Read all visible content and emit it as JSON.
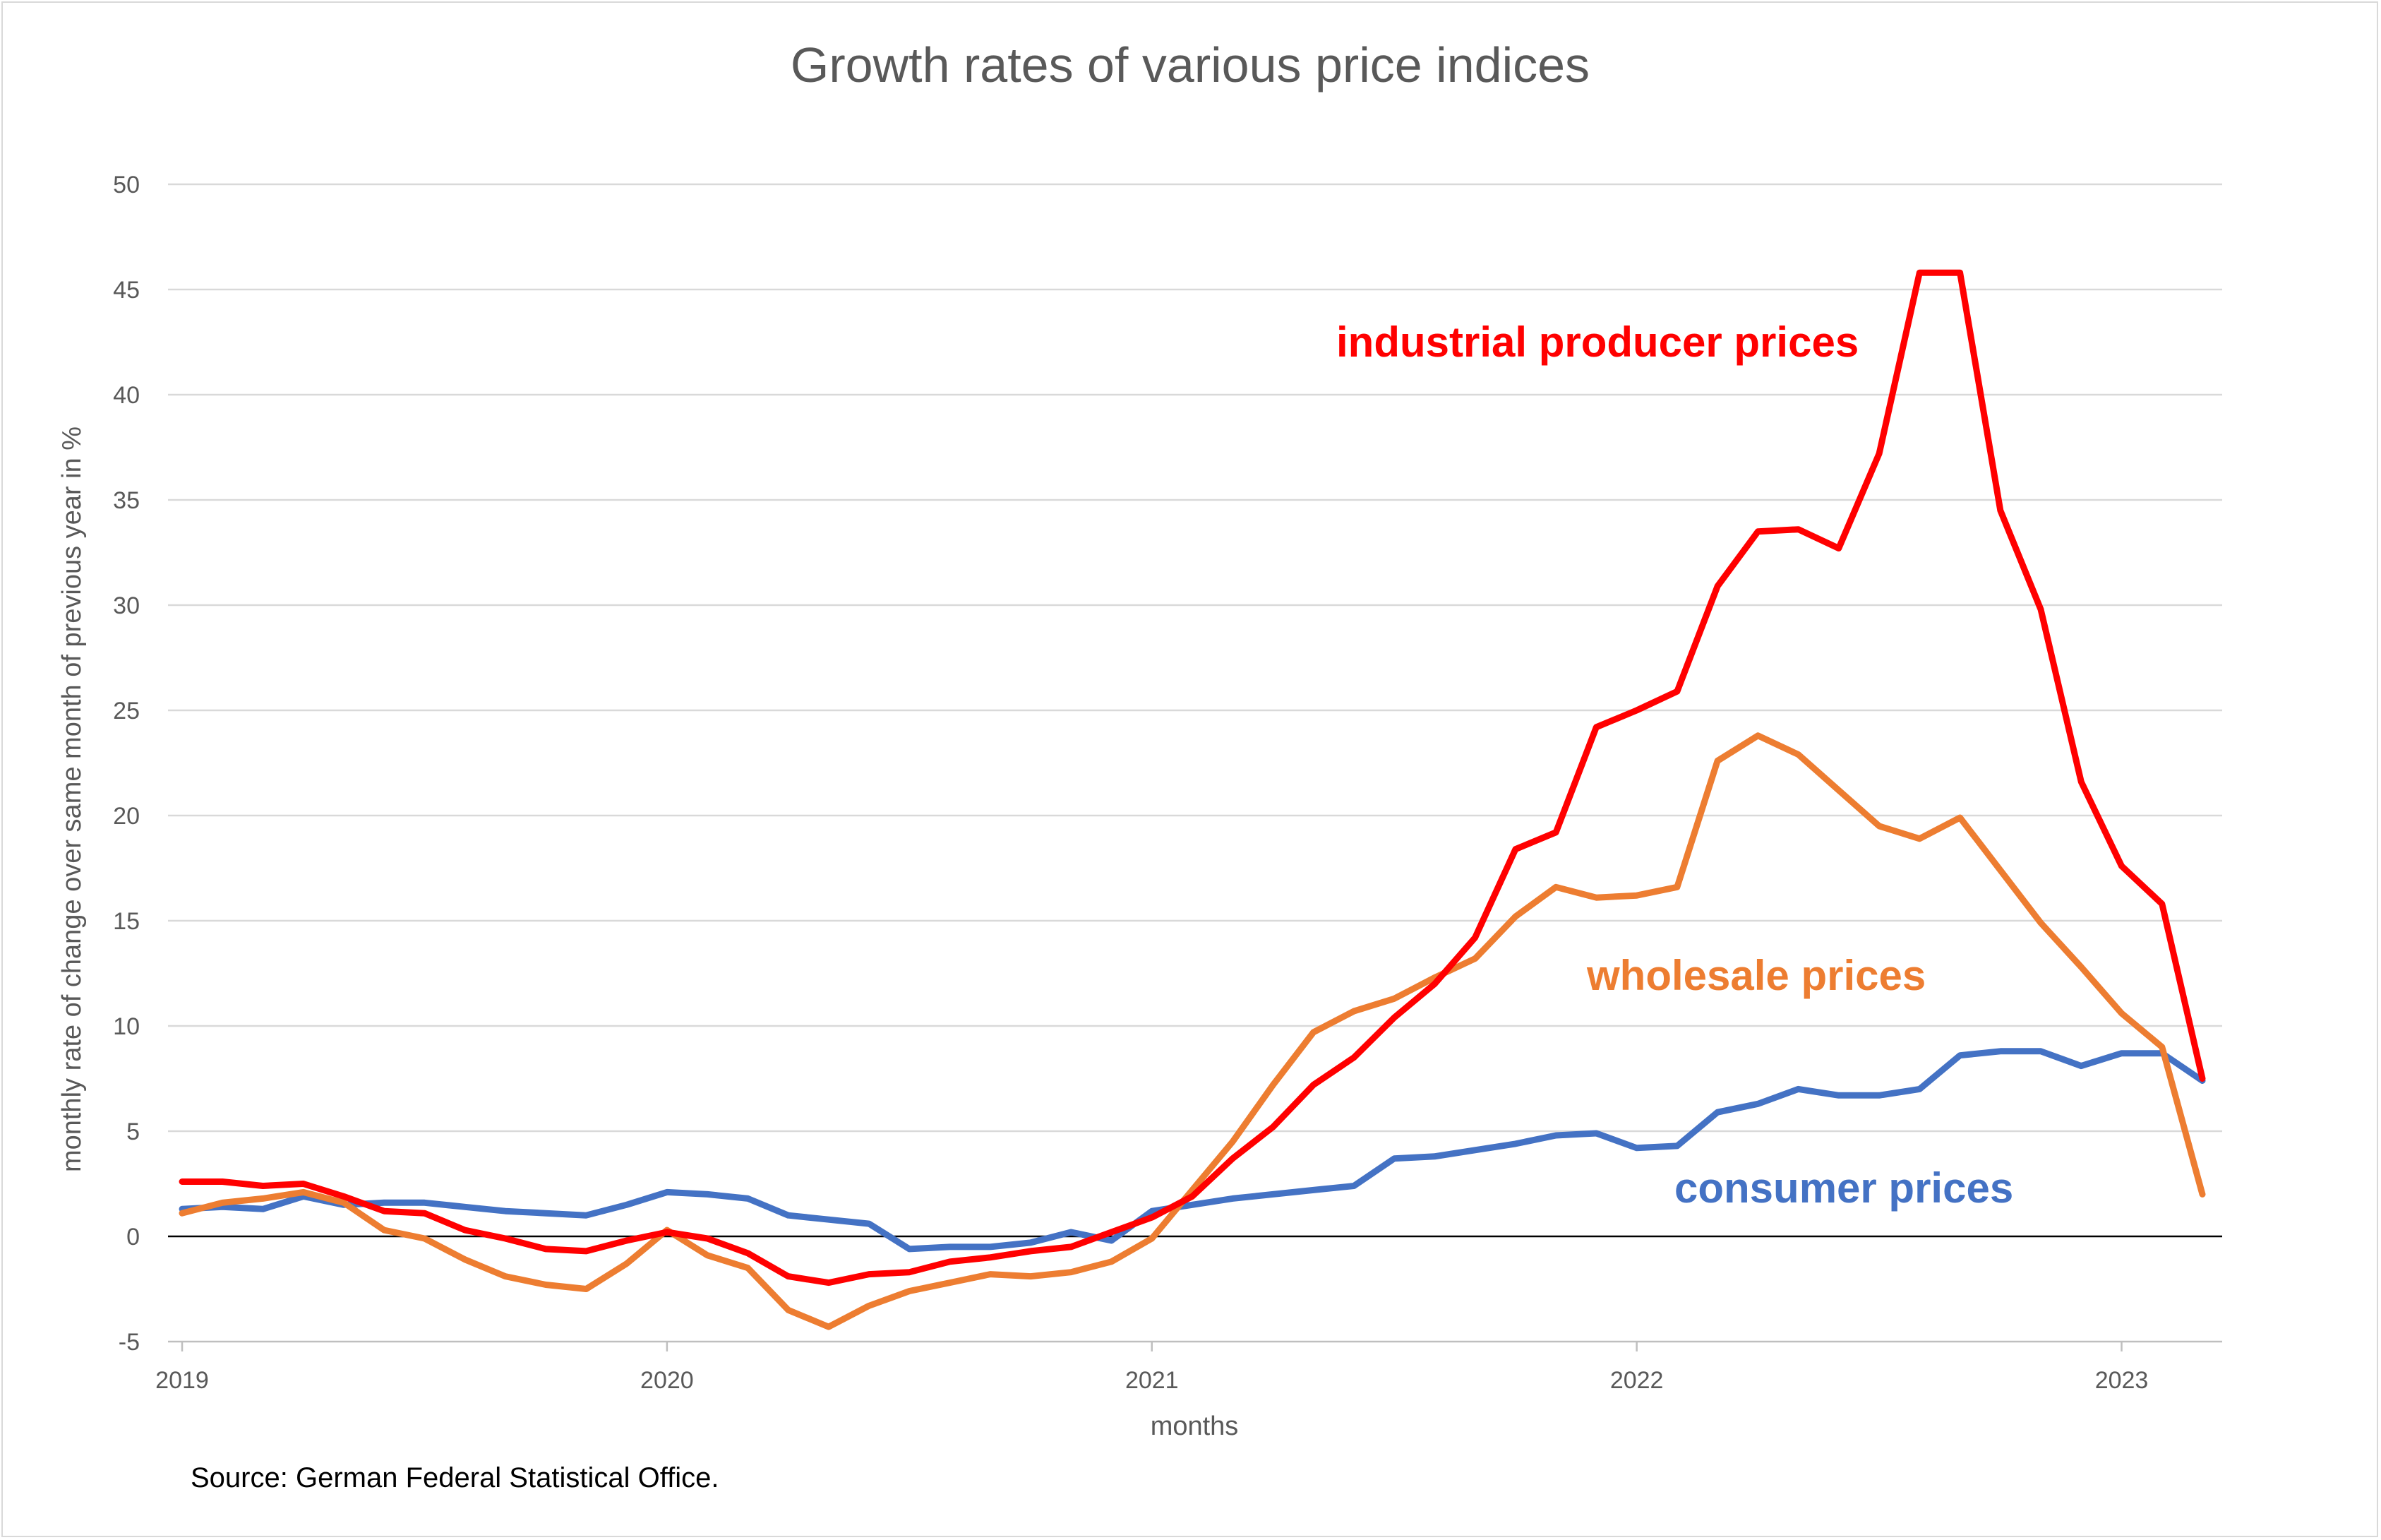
{
  "chart_data": {
    "type": "line",
    "title": "Growth rates of various price indices",
    "xlabel": "months",
    "ylabel": "monthly rate of change over same month of previous year in %",
    "source": "Source: German Federal Statistical Office.",
    "ylim": [
      -5,
      50
    ],
    "yticks": [
      -5,
      0,
      5,
      10,
      15,
      20,
      25,
      30,
      35,
      40,
      45,
      50
    ],
    "xticks": [
      "2019",
      "2020",
      "2021",
      "2022",
      "2023"
    ],
    "grid": true,
    "x_start": "2019-01",
    "x_end": "2023-03",
    "series": [
      {
        "name": "industrial producer prices",
        "color": "#ff0000",
        "values": [
          2.6,
          2.6,
          2.4,
          2.5,
          1.9,
          1.2,
          1.1,
          0.3,
          -0.1,
          -0.6,
          -0.7,
          -0.2,
          0.2,
          -0.1,
          -0.8,
          -1.9,
          -2.2,
          -1.8,
          -1.7,
          -1.2,
          -1.0,
          -0.7,
          -0.5,
          0.2,
          0.9,
          1.9,
          3.7,
          5.2,
          7.2,
          8.5,
          10.4,
          12.0,
          14.2,
          18.4,
          19.2,
          24.2,
          25.0,
          25.9,
          30.9,
          33.5,
          33.6,
          32.7,
          37.2,
          45.8,
          45.8,
          34.5,
          29.8,
          21.6,
          17.6,
          15.8,
          7.5
        ]
      },
      {
        "name": "wholesale prices",
        "color": "#ed7d31",
        "values": [
          1.1,
          1.6,
          1.8,
          2.1,
          1.6,
          0.3,
          -0.1,
          -1.1,
          -1.9,
          -2.3,
          -2.5,
          -1.3,
          0.3,
          -0.9,
          -1.5,
          -3.5,
          -4.3,
          -3.3,
          -2.6,
          -2.2,
          -1.8,
          -1.9,
          -1.7,
          -1.2,
          -0.1,
          2.2,
          4.5,
          7.2,
          9.7,
          10.7,
          11.3,
          12.3,
          13.2,
          15.2,
          16.6,
          16.1,
          16.2,
          16.6,
          22.6,
          23.8,
          22.9,
          21.2,
          19.5,
          18.9,
          19.9,
          17.4,
          14.9,
          12.8,
          10.6,
          9.0,
          2.0
        ]
      },
      {
        "name": "consumer prices",
        "color": "#4472c4",
        "values": [
          1.3,
          1.4,
          1.3,
          1.9,
          1.5,
          1.6,
          1.6,
          1.4,
          1.2,
          1.1,
          1.0,
          1.5,
          2.1,
          2.0,
          1.8,
          1.0,
          0.8,
          0.6,
          -0.6,
          -0.5,
          -0.5,
          -0.3,
          0.2,
          -0.2,
          1.2,
          1.5,
          1.8,
          2.0,
          2.2,
          2.4,
          3.7,
          3.8,
          4.1,
          4.4,
          4.8,
          4.9,
          4.2,
          4.3,
          5.9,
          6.3,
          7.0,
          6.7,
          6.7,
          7.0,
          8.6,
          8.8,
          8.8,
          8.1,
          8.7,
          8.7,
          7.4
        ]
      }
    ]
  }
}
